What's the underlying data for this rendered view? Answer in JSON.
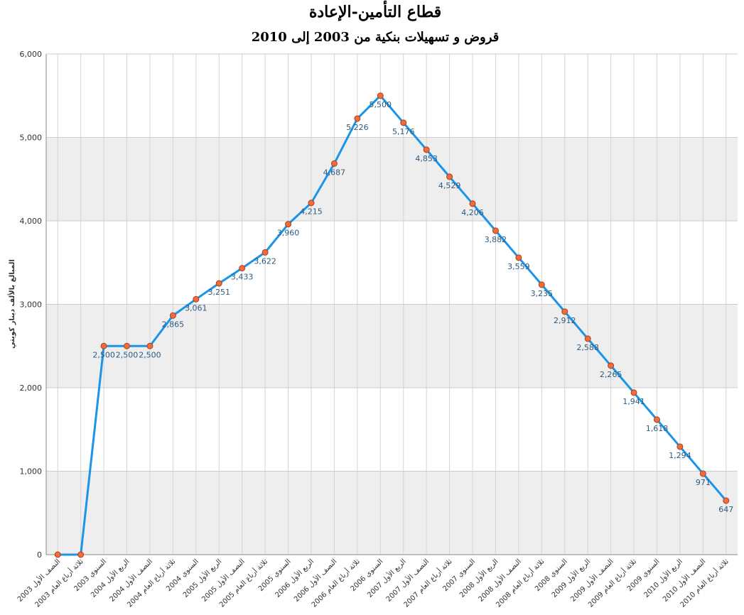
{
  "chart_data": {
    "type": "line",
    "title": "قطاع التأمين-الإعادة",
    "subtitle": "قروض و تسهيلات بنكية من 2003 إلى 2010",
    "y_label": "المبالغ بالألف دينار كويتي",
    "categories": [
      "النصف الأول 2003",
      "ثلاثة أرباع العام 2003",
      "السنوي 2003",
      "الربع الأول 2004",
      "النصف الأول 2004",
      "ثلاثة أرباع العام 2004",
      "السنوي 2004",
      "الربع الأول 2005",
      "النصف الأول 2005",
      "ثلاثة أرباع العام 2005",
      "السنوي 2005",
      "الربع الأول 2006",
      "النصف الأول 2006",
      "ثلاثة أرباع العام 2006",
      "السنوي 2006",
      "الربع الأول 2007",
      "النصف الأول 2007",
      "ثلاثة أرباع العام 2007",
      "السنوي 2007",
      "الربع الأول 2008",
      "النصف الأول 2008",
      "ثلاثة أرباع العام 2008",
      "السنوي 2008",
      "الربع الأول 2009",
      "النصف الأول 2009",
      "ثلاثة أرباع العام 2009",
      "السنوي 2009",
      "الربع الأول 2010",
      "النصف الأول 2010",
      "ثلاثة أرباع العام 2010"
    ],
    "values": [
      0,
      0,
      2500,
      2500,
      2500,
      2865,
      3061,
      3251,
      3433,
      3622,
      3960,
      4215,
      4687,
      5226,
      5500,
      5176,
      4853,
      4529,
      4206,
      3882,
      3559,
      3235,
      2912,
      2588,
      2265,
      1941,
      1618,
      1294,
      971,
      647
    ],
    "value_labels": [
      null,
      null,
      "2,500",
      "2,500",
      "2,500",
      "2,865",
      "3,061",
      "3,251",
      "3,433",
      "3,622",
      "3,960",
      "4,215",
      "4,687",
      "5,226",
      "5,500",
      "5,176",
      "4,853",
      "4,529",
      "4,206",
      "3,882",
      "3,559",
      "3,235",
      "2,912",
      "2,588",
      "2,265",
      "1,941",
      "1,618",
      "1,294",
      "971",
      "647"
    ],
    "color": "#1a95e8",
    "marker_color": "#f26b3a",
    "ylim": [
      0,
      6000
    ],
    "yticks": [
      0,
      {
        "value": 1000,
        "label": "1,000"
      },
      {
        "value": 2000,
        "label": "2,000"
      },
      {
        "value": 3000,
        "label": "3,000"
      },
      {
        "value": 4000,
        "label": "4,000"
      },
      {
        "value": 5000,
        "label": "5,000"
      },
      {
        "value": 6000,
        "label": "6,000"
      }
    ],
    "grid": true
  }
}
